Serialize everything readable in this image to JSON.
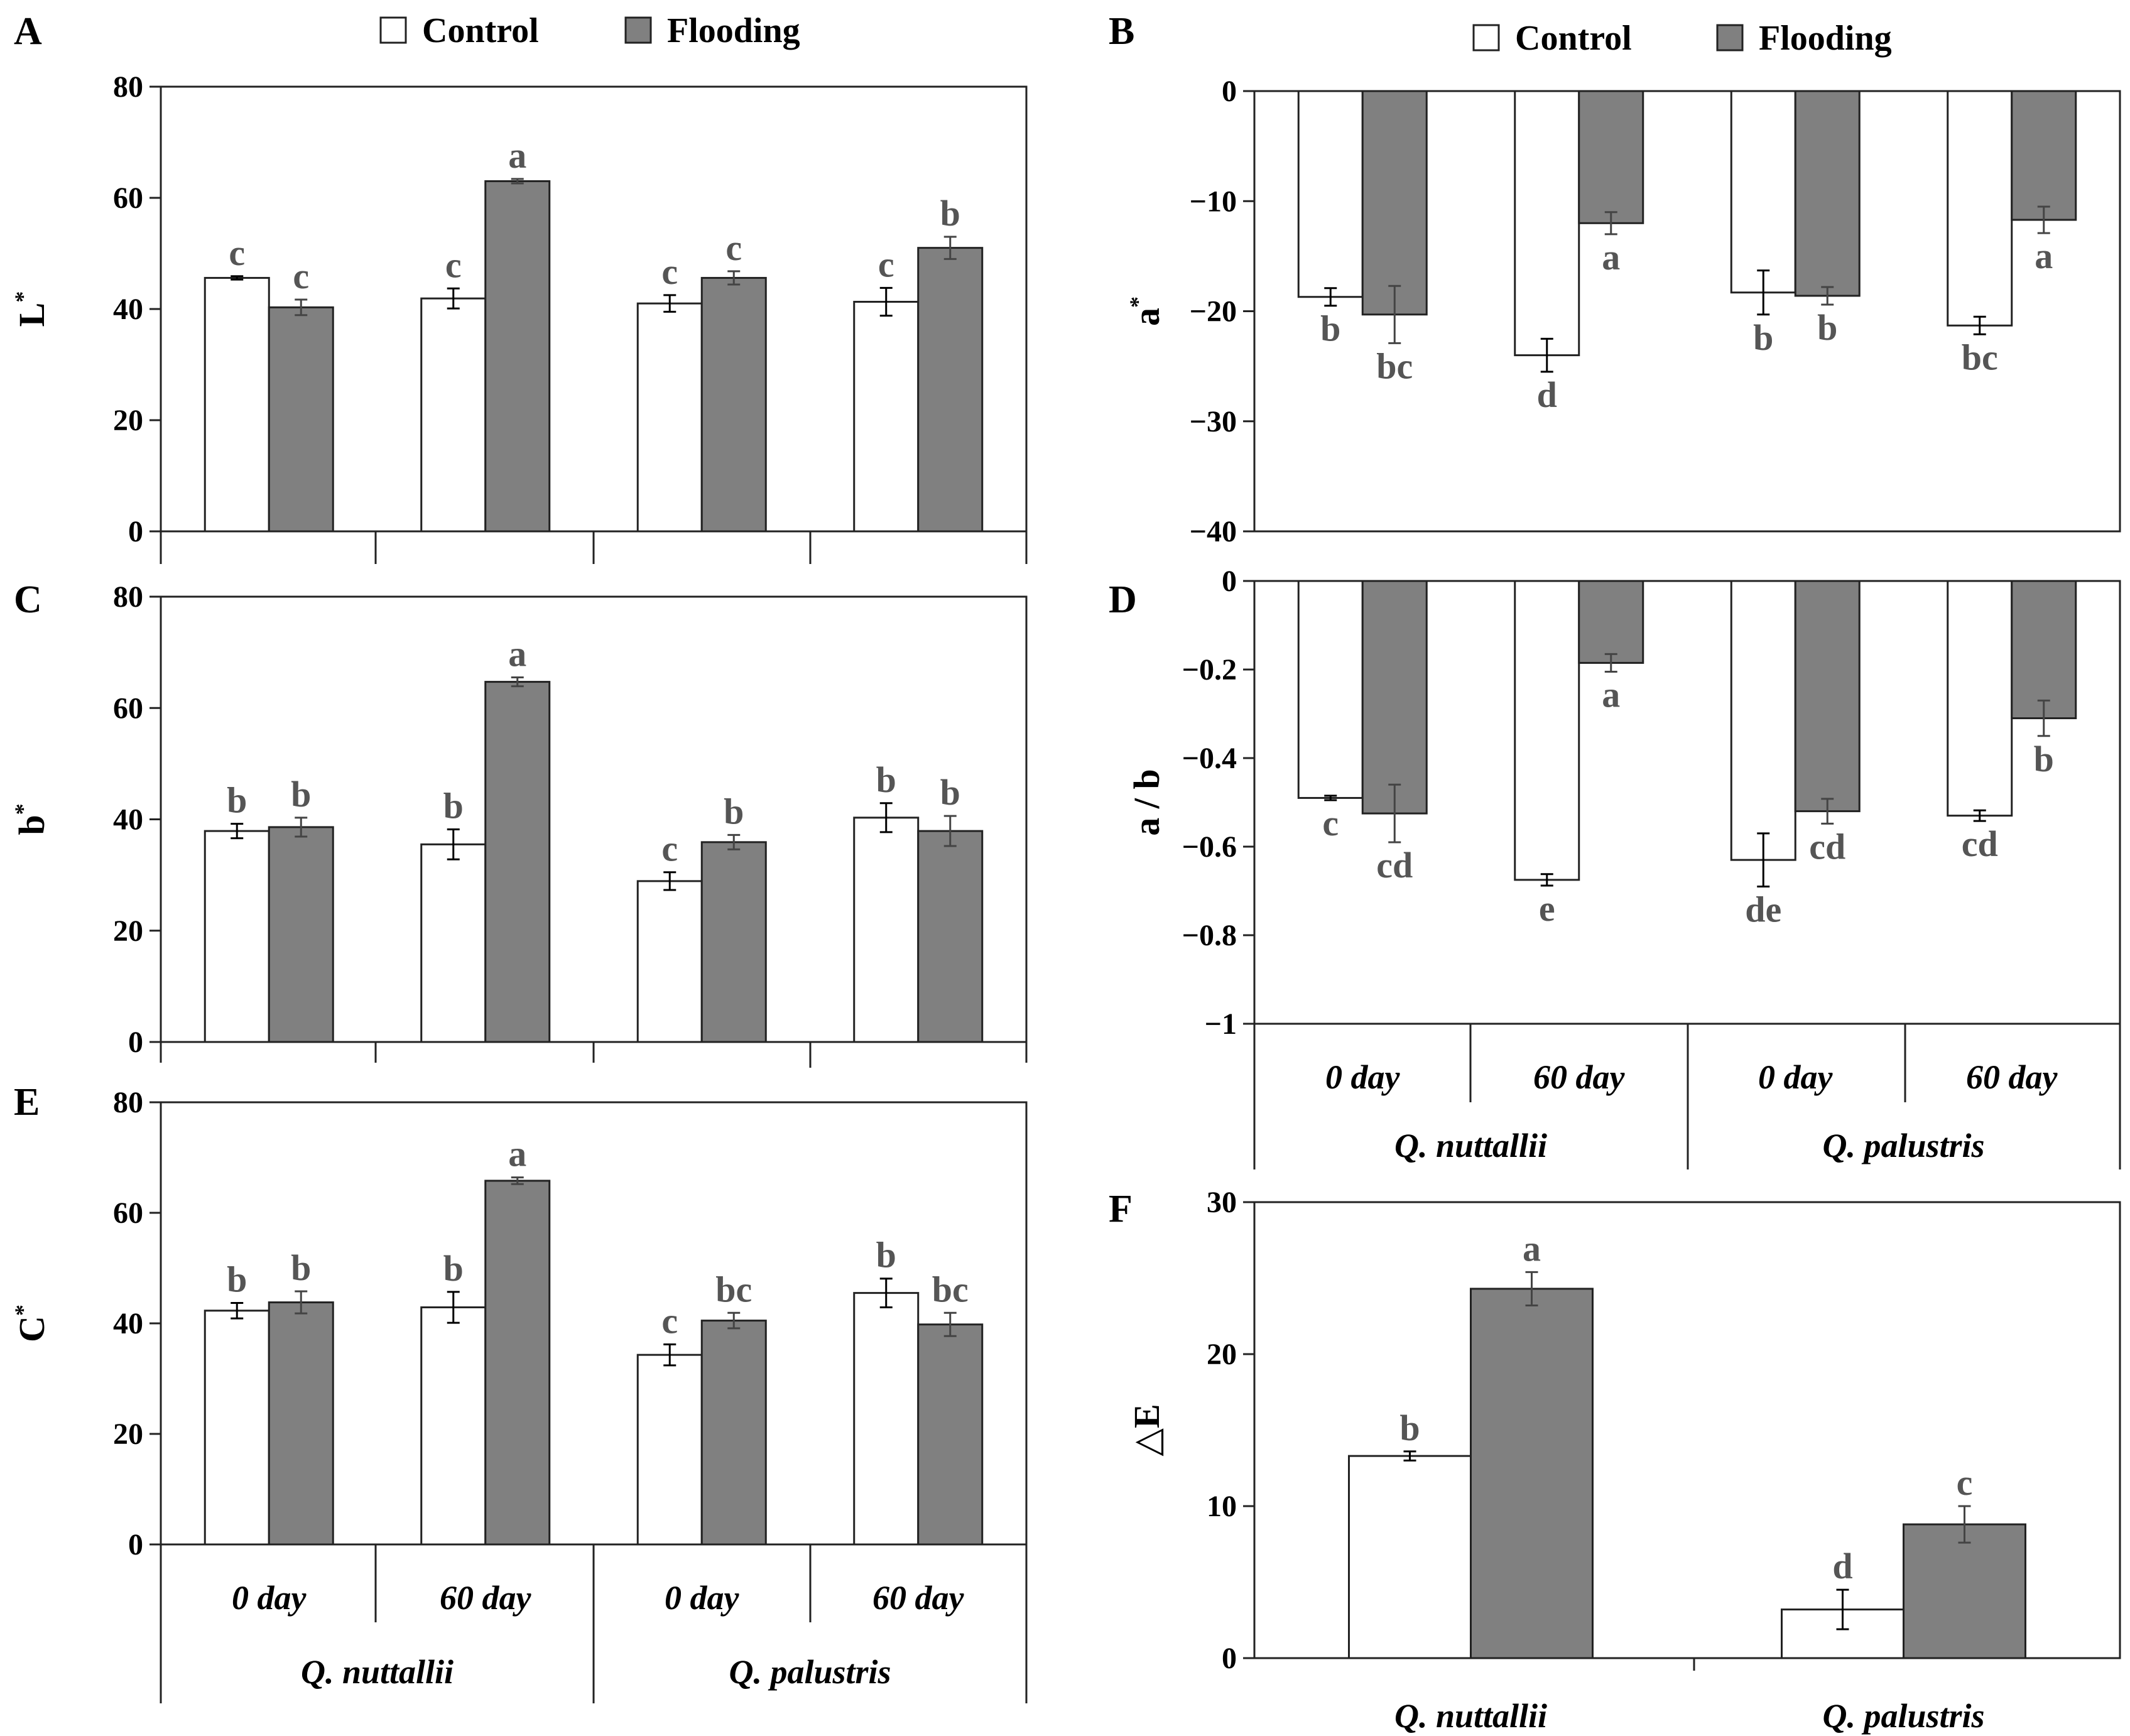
{
  "legend": {
    "control": "Control",
    "flooding": "Flooding"
  },
  "colors": {
    "control": "#ffffff",
    "flooding": "#808080",
    "axis": "#222222",
    "sig": "#555555"
  },
  "categories": {
    "time": [
      "0 day",
      "60 day",
      "0 day",
      "60 day"
    ],
    "species": [
      "Q. nuttallii",
      "Q. palustris"
    ]
  },
  "chart_data": [
    {
      "type": "bar",
      "panel": "A",
      "ylabel": "L",
      "ylabel_sup": "*",
      "categories": [
        "0 day",
        "60 day",
        "0 day",
        "60 day"
      ],
      "groups": [
        "Q. nuttallii",
        "Q. palustris"
      ],
      "ylim": [
        0,
        80
      ],
      "yticks": [
        0,
        20,
        40,
        60,
        80
      ],
      "series": [
        {
          "name": "Control",
          "values": [
            45.6,
            41.9,
            41.0,
            41.3
          ],
          "errors": [
            0.3,
            1.8,
            1.5,
            2.5
          ],
          "labels": [
            "c",
            "c",
            "c",
            "c"
          ]
        },
        {
          "name": "Flooding",
          "values": [
            40.3,
            63.0,
            45.6,
            51.0
          ],
          "errors": [
            1.4,
            0.4,
            1.2,
            2.0
          ],
          "labels": [
            "c",
            "a",
            "c",
            "b"
          ]
        }
      ]
    },
    {
      "type": "bar",
      "panel": "B",
      "ylabel": "a",
      "ylabel_sup": "*",
      "categories": [
        "0 day",
        "60 day",
        "0 day",
        "60 day"
      ],
      "groups": [
        "Q. nuttallii",
        "Q. palustris"
      ],
      "ylim": [
        -40,
        0
      ],
      "yticks": [
        0,
        -10,
        -20,
        -30,
        -40
      ],
      "series": [
        {
          "name": "Control",
          "values": [
            -18.7,
            -24.0,
            -18.3,
            -21.3
          ],
          "errors": [
            0.8,
            1.5,
            2.0,
            0.8
          ],
          "labels": [
            "b",
            "d",
            "b",
            "bc"
          ]
        },
        {
          "name": "Flooding",
          "values": [
            -20.3,
            -12.0,
            -18.6,
            -11.7
          ],
          "errors": [
            2.6,
            1.0,
            0.8,
            1.2
          ],
          "labels": [
            "bc",
            "a",
            "b",
            "a"
          ]
        }
      ]
    },
    {
      "type": "bar",
      "panel": "C",
      "ylabel": "b",
      "ylabel_sup": "*",
      "categories": [
        "0 day",
        "60 day",
        "0 day",
        "60 day"
      ],
      "groups": [
        "Q. nuttallii",
        "Q. palustris"
      ],
      "ylim": [
        0,
        80
      ],
      "yticks": [
        0,
        20,
        40,
        60,
        80
      ],
      "series": [
        {
          "name": "Control",
          "values": [
            37.9,
            35.5,
            28.9,
            40.3
          ],
          "errors": [
            1.3,
            2.7,
            1.6,
            2.6
          ],
          "labels": [
            "b",
            "b",
            "c",
            "b"
          ]
        },
        {
          "name": "Flooding",
          "values": [
            38.6,
            64.7,
            35.9,
            37.9
          ],
          "errors": [
            1.7,
            0.8,
            1.3,
            2.7
          ],
          "labels": [
            "b",
            "a",
            "b",
            "b"
          ]
        }
      ]
    },
    {
      "type": "bar",
      "panel": "D",
      "ylabel": "a / b",
      "ylabel_sup": "",
      "categories": [
        "0 day",
        "60 day",
        "0 day",
        "60 day"
      ],
      "groups": [
        "Q. nuttallii",
        "Q. palustris"
      ],
      "ylim": [
        -1,
        0
      ],
      "yticks": [
        "0",
        "-0.2",
        "-0.4",
        "-0.6",
        "-0.8",
        "-1"
      ],
      "ytick_values": [
        0,
        -0.2,
        -0.4,
        -0.6,
        -0.8,
        -1
      ],
      "series": [
        {
          "name": "Control",
          "values": [
            -0.49,
            -0.675,
            -0.63,
            -0.53
          ],
          "errors": [
            0.005,
            0.013,
            0.06,
            0.012
          ],
          "labels": [
            "c",
            "e",
            "de",
            "cd"
          ]
        },
        {
          "name": "Flooding",
          "values": [
            -0.525,
            -0.185,
            -0.52,
            -0.31
          ],
          "errors": [
            0.065,
            0.02,
            0.028,
            0.04
          ],
          "labels": [
            "cd",
            "a",
            "cd",
            "b"
          ]
        }
      ]
    },
    {
      "type": "bar",
      "panel": "E",
      "ylabel": "C",
      "ylabel_sup": "*",
      "categories": [
        "0 day",
        "60 day",
        "0 day",
        "60 day"
      ],
      "groups": [
        "Q. nuttallii",
        "Q. palustris"
      ],
      "ylim": [
        0,
        80
      ],
      "yticks": [
        0,
        20,
        40,
        60,
        80
      ],
      "series": [
        {
          "name": "Control",
          "values": [
            42.3,
            42.9,
            34.3,
            45.5
          ],
          "errors": [
            1.4,
            2.8,
            1.9,
            2.6
          ],
          "labels": [
            "b",
            "b",
            "c",
            "b"
          ]
        },
        {
          "name": "Flooding",
          "values": [
            43.8,
            65.8,
            40.5,
            39.8
          ],
          "errors": [
            2.0,
            0.6,
            1.4,
            2.1
          ],
          "labels": [
            "b",
            "a",
            "bc",
            "bc"
          ]
        }
      ]
    },
    {
      "type": "bar",
      "panel": "F",
      "ylabel": "△E",
      "ylabel_sup": "",
      "categories": [
        "Q. nuttallii",
        "Q. palustris"
      ],
      "ylim": [
        0,
        30
      ],
      "yticks": [
        0,
        10,
        20,
        30
      ],
      "series": [
        {
          "name": "Control",
          "values": [
            13.3,
            3.2
          ],
          "errors": [
            0.3,
            1.3
          ],
          "labels": [
            "b",
            "d"
          ]
        },
        {
          "name": "Flooding",
          "values": [
            24.3,
            8.8
          ],
          "errors": [
            1.1,
            1.2
          ],
          "labels": [
            "a",
            "c"
          ]
        }
      ]
    }
  ]
}
